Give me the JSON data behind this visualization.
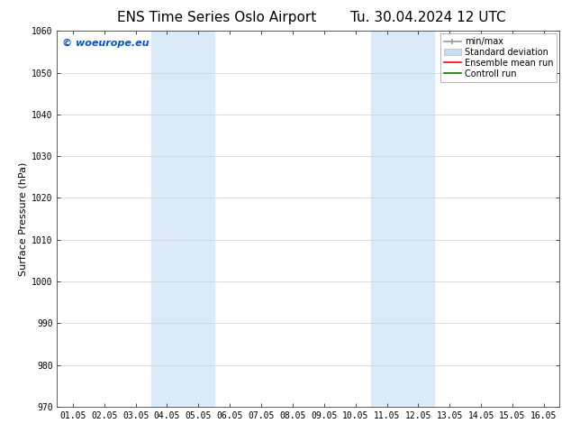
{
  "title_left": "ENS Time Series Oslo Airport",
  "title_right": "Tu. 30.04.2024 12 UTC",
  "ylabel": "Surface Pressure (hPa)",
  "ylim": [
    970,
    1060
  ],
  "yticks": [
    970,
    980,
    990,
    1000,
    1010,
    1020,
    1030,
    1040,
    1050,
    1060
  ],
  "xtick_labels": [
    "01.05",
    "02.05",
    "03.05",
    "04.05",
    "05.05",
    "06.05",
    "07.05",
    "08.05",
    "09.05",
    "10.05",
    "11.05",
    "12.05",
    "13.05",
    "14.05",
    "15.05",
    "16.05"
  ],
  "shaded_regions": [
    {
      "xstart": 3,
      "xend": 5,
      "color": "#daeaf8"
    },
    {
      "xstart": 10,
      "xend": 12,
      "color": "#daeaf8"
    }
  ],
  "watermark_text": "© woeurope.eu",
  "watermark_color": "#0055cc",
  "legend_items": [
    {
      "label": "min/max",
      "color": "#aaaaaa"
    },
    {
      "label": "Standard deviation",
      "color": "#c8ddf0"
    },
    {
      "label": "Ensemble mean run",
      "color": "#ff0000"
    },
    {
      "label": "Controll run",
      "color": "#007700"
    }
  ],
  "background_color": "#ffffff",
  "grid_color": "#cccccc",
  "title_fontsize": 11,
  "ylabel_fontsize": 8,
  "tick_fontsize": 7,
  "watermark_fontsize": 8,
  "legend_fontsize": 7
}
